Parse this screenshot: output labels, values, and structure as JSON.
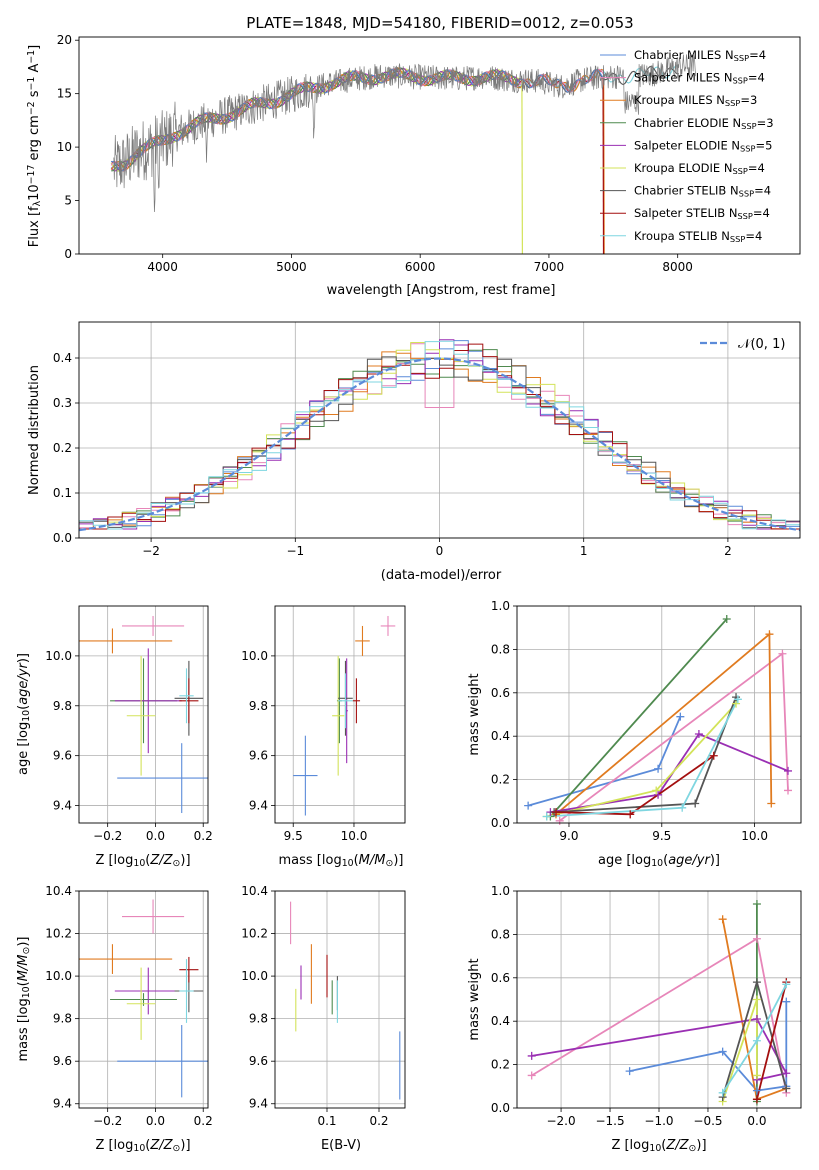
{
  "figure_title": "PLATE=1848, MJD=54180, FIBERID=0012, z=0.053",
  "colors": {
    "Chabrier MILES": "#5b8bd9",
    "Salpeter MILES": "#e786b9",
    "Kroupa MILES": "#e07b20",
    "Chabrier ELODIE": "#4f8a4f",
    "Salpeter ELODIE": "#9a2fb3",
    "Kroupa ELODIE": "#d3e35a",
    "Chabrier STELIB": "#555555",
    "Salpeter STELIB": "#a30f0f",
    "Kroupa STELIB": "#7fd6e0",
    "data": "#7a7a7a",
    "normal": "#5b8bd9"
  },
  "chart_data": [
    {
      "id": "spectrum",
      "type": "line",
      "title": "PLATE=1848, MJD=54180, FIBERID=0012, z=0.053",
      "xlabel": "wavelength [Angstrom, rest frame]",
      "ylabel": "Flux [f_λ10^-17 erg cm^-2 s^-1 A^-1]",
      "xlim": [
        3350,
        8950
      ],
      "ylim": [
        0,
        20.3
      ],
      "xticks": [
        4000,
        5000,
        6000,
        7000,
        8000
      ],
      "yticks": [
        0,
        5,
        10,
        15,
        20
      ],
      "legend": "top-right",
      "legend_entries": [
        {
          "name": "Chabrier MILES",
          "nssp": "4"
        },
        {
          "name": "Salpeter MILES",
          "nssp": "4"
        },
        {
          "name": "Kroupa MILES",
          "nssp": "3"
        },
        {
          "name": "Chabrier ELODIE",
          "nssp": "3"
        },
        {
          "name": "Salpeter ELODIE",
          "nssp": "5"
        },
        {
          "name": "Kroupa ELODIE",
          "nssp": "4"
        },
        {
          "name": "Chabrier STELIB",
          "nssp": "4"
        },
        {
          "name": "Salpeter STELIB",
          "nssp": "4"
        },
        {
          "name": "Kroupa STELIB",
          "nssp": "4"
        }
      ],
      "continuum": [
        [
          3600,
          8.0
        ],
        [
          3700,
          8.5
        ],
        [
          3800,
          9.5
        ],
        [
          3900,
          10.0
        ],
        [
          4000,
          10.5
        ],
        [
          4100,
          11.3
        ],
        [
          4300,
          12.3
        ],
        [
          4500,
          13.0
        ],
        [
          4700,
          13.8
        ],
        [
          4900,
          14.5
        ],
        [
          5100,
          15.3
        ],
        [
          5300,
          16.0
        ],
        [
          5500,
          16.4
        ],
        [
          5700,
          16.7
        ],
        [
          5900,
          16.6
        ],
        [
          6100,
          16.5
        ],
        [
          6300,
          16.4
        ],
        [
          6500,
          16.6
        ],
        [
          6700,
          16.3
        ],
        [
          6900,
          16.2
        ],
        [
          7100,
          15.7
        ],
        [
          7300,
          16.4
        ],
        [
          7500,
          16.6
        ],
        [
          7800,
          16.8
        ],
        [
          8000,
          17.5
        ],
        [
          8100,
          17.6
        ]
      ],
      "fit_ranges": {
        "Chabrier MILES": [
          3600,
          7430
        ],
        "Salpeter MILES": [
          3600,
          7430
        ],
        "Kroupa MILES": [
          3600,
          7430
        ],
        "Chabrier ELODIE": [
          3600,
          6790
        ],
        "Salpeter ELODIE": [
          3600,
          6790
        ],
        "Kroupa ELODIE": [
          3600,
          6790
        ],
        "Chabrier STELIB": [
          3600,
          8010
        ],
        "Salpeter STELIB": [
          3600,
          7420
        ],
        "Kroupa STELIB": [
          3600,
          8010
        ]
      },
      "drops": [
        {
          "model": "Kroupa ELODIE",
          "x": 6790
        },
        {
          "model": "Kroupa MILES",
          "x": 7425
        },
        {
          "model": "Salpeter STELIB",
          "x": 7420
        }
      ]
    },
    {
      "id": "residuals",
      "type": "line",
      "xlabel": "(data-model)/error",
      "ylabel": "Normed distribution",
      "xlim": [
        -2.5,
        2.5
      ],
      "ylim": [
        0,
        0.48
      ],
      "xticks": [
        -2,
        -1,
        0,
        1,
        2
      ],
      "yticks": [
        0.0,
        0.1,
        0.2,
        0.3,
        0.4
      ],
      "grid": true,
      "legend": "top-right",
      "reference": "N(0,1)",
      "bin_width": 0.1
    },
    {
      "id": "age-vs-Z",
      "type": "scatter",
      "xlabel": "Z [log10(Z/Z☉)]",
      "ylabel": "age [log10(age/yr)]",
      "xlim": [
        -0.32,
        0.22
      ],
      "ylim": [
        9.33,
        10.2
      ],
      "xticks": [
        -0.2,
        0.0,
        0.2
      ],
      "yticks": [
        9.4,
        9.6,
        9.8,
        10.0
      ],
      "grid": true,
      "points": [
        {
          "model": "Chabrier MILES",
          "x": 0.11,
          "xerr": 0.27,
          "y": 9.51,
          "yerr": 0.14
        },
        {
          "model": "Salpeter MILES",
          "x": -0.01,
          "xerr": 0.13,
          "y": 10.12,
          "yerr": 0.04
        },
        {
          "model": "Kroupa MILES",
          "x": -0.18,
          "xerr": 0.25,
          "y": 10.06,
          "yerr": 0.05
        },
        {
          "model": "Chabrier ELODIE",
          "x": -0.05,
          "xerr": 0.14,
          "y": 9.82,
          "yerr": 0.17
        },
        {
          "model": "Salpeter ELODIE",
          "x": -0.03,
          "xerr": 0.14,
          "y": 9.82,
          "yerr": 0.21
        },
        {
          "model": "Kroupa ELODIE",
          "x": -0.06,
          "xerr": 0.06,
          "y": 9.76,
          "yerr": 0.24
        },
        {
          "model": "Chabrier STELIB",
          "x": 0.14,
          "xerr": 0.06,
          "y": 9.83,
          "yerr": 0.15
        },
        {
          "model": "Salpeter STELIB",
          "x": 0.14,
          "xerr": 0.04,
          "y": 9.82,
          "yerr": 0.09
        },
        {
          "model": "Kroupa STELIB",
          "x": 0.13,
          "xerr": 0.03,
          "y": 9.84,
          "yerr": 0.11
        }
      ]
    },
    {
      "id": "age-vs-mass",
      "type": "scatter",
      "xlabel": "mass [log10(M/M☉)]",
      "ylabel": "",
      "xlim": [
        9.35,
        10.42
      ],
      "ylim": [
        9.33,
        10.2
      ],
      "xticks": [
        9.5,
        10.0
      ],
      "yticks": [
        9.4,
        9.6,
        9.8,
        10.0
      ],
      "grid": true,
      "points": [
        {
          "model": "Chabrier MILES",
          "x": 9.6,
          "xerr": 0.1,
          "y": 9.52,
          "yerr": 0.16
        },
        {
          "model": "Salpeter MILES",
          "x": 10.28,
          "xerr": 0.06,
          "y": 10.12,
          "yerr": 0.04
        },
        {
          "model": "Kroupa MILES",
          "x": 10.07,
          "xerr": 0.06,
          "y": 10.06,
          "yerr": 0.06
        },
        {
          "model": "Chabrier ELODIE",
          "x": 9.88,
          "xerr": 0.02,
          "y": 9.82,
          "yerr": 0.17
        },
        {
          "model": "Salpeter ELODIE",
          "x": 9.94,
          "xerr": 0.01,
          "y": 9.78,
          "yerr": 0.21
        },
        {
          "model": "Kroupa ELODIE",
          "x": 9.87,
          "xerr": 0.05,
          "y": 9.76,
          "yerr": 0.24
        },
        {
          "model": "Chabrier STELIB",
          "x": 9.93,
          "xerr": 0.06,
          "y": 9.83,
          "yerr": 0.15
        },
        {
          "model": "Salpeter STELIB",
          "x": 10.02,
          "xerr": 0.03,
          "y": 9.82,
          "yerr": 0.09
        },
        {
          "model": "Kroupa STELIB",
          "x": 9.93,
          "xerr": 0.06,
          "y": 9.82,
          "yerr": 0.11
        }
      ]
    },
    {
      "id": "weight-vs-age",
      "type": "line",
      "xlabel": "age [log10(age/yr)]",
      "ylabel": "mass weight",
      "xlim": [
        8.72,
        10.25
      ],
      "ylim": [
        0,
        1.0
      ],
      "xticks": [
        9.0,
        9.5,
        10.0
      ],
      "yticks": [
        0.0,
        0.2,
        0.4,
        0.6,
        0.8,
        1.0
      ],
      "grid": true,
      "series": [
        {
          "name": "Chabrier MILES",
          "x": [
            8.78,
            9.48,
            9.6
          ],
          "y": [
            0.08,
            0.25,
            0.49
          ]
        },
        {
          "name": "Salpeter MILES",
          "x": [
            8.95,
            10.15,
            10.18
          ],
          "y": [
            0.01,
            0.78,
            0.15
          ]
        },
        {
          "name": "Kroupa MILES",
          "x": [
            8.93,
            10.08,
            10.09
          ],
          "y": [
            0.04,
            0.87,
            0.09
          ]
        },
        {
          "name": "Chabrier ELODIE",
          "x": [
            8.9,
            9.85
          ],
          "y": [
            0.03,
            0.94
          ]
        },
        {
          "name": "Salpeter ELODIE",
          "x": [
            8.9,
            9.48,
            9.7,
            10.18
          ],
          "y": [
            0.05,
            0.13,
            0.41,
            0.24
          ]
        },
        {
          "name": "Kroupa ELODIE",
          "x": [
            8.88,
            9.47,
            9.9
          ],
          "y": [
            0.03,
            0.15,
            0.55
          ]
        },
        {
          "name": "Chabrier STELIB",
          "x": [
            8.92,
            9.68,
            9.9
          ],
          "y": [
            0.05,
            0.09,
            0.58
          ]
        },
        {
          "name": "Salpeter STELIB",
          "x": [
            8.93,
            9.33,
            9.78
          ],
          "y": [
            0.05,
            0.04,
            0.31
          ]
        },
        {
          "name": "Kroupa STELIB",
          "x": [
            8.88,
            9.61,
            9.91
          ],
          "y": [
            0.03,
            0.07,
            0.57
          ]
        }
      ]
    },
    {
      "id": "mass-vs-Z",
      "type": "scatter",
      "xlabel": "Z [log10(Z/Z☉)]",
      "ylabel": "mass [log10(M/M☉)]",
      "xlim": [
        -0.32,
        0.22
      ],
      "ylim": [
        9.38,
        10.4
      ],
      "xticks": [
        -0.2,
        0.0,
        0.2
      ],
      "yticks": [
        9.4,
        9.6,
        9.8,
        10.0,
        10.2,
        10.4
      ],
      "grid": true,
      "points": [
        {
          "model": "Chabrier MILES",
          "x": 0.11,
          "xerr": 0.27,
          "y": 9.6,
          "yerr": 0.17
        },
        {
          "model": "Salpeter MILES",
          "x": -0.01,
          "xerr": 0.13,
          "y": 10.28,
          "yerr": 0.08
        },
        {
          "model": "Kroupa MILES",
          "x": -0.18,
          "xerr": 0.25,
          "y": 10.08,
          "yerr": 0.07
        },
        {
          "model": "Chabrier ELODIE",
          "x": -0.05,
          "xerr": 0.14,
          "y": 9.89,
          "yerr": 0.03
        },
        {
          "model": "Salpeter ELODIE",
          "x": -0.03,
          "xerr": 0.14,
          "y": 9.93,
          "yerr": 0.11
        },
        {
          "model": "Kroupa ELODIE",
          "x": -0.06,
          "xerr": 0.06,
          "y": 9.87,
          "yerr": 0.17
        },
        {
          "model": "Chabrier STELIB",
          "x": 0.14,
          "xerr": 0.06,
          "y": 9.93,
          "yerr": 0.1
        },
        {
          "model": "Salpeter STELIB",
          "x": 0.14,
          "xerr": 0.04,
          "y": 10.03,
          "yerr": 0.06
        },
        {
          "model": "Kroupa STELIB",
          "x": 0.13,
          "xerr": 0.03,
          "y": 9.93,
          "yerr": 0.15
        }
      ]
    },
    {
      "id": "mass-vs-ebv",
      "type": "scatter",
      "xlabel": "E(B-V)",
      "ylabel": "",
      "xlim": [
        0.0,
        0.25
      ],
      "ylim": [
        9.38,
        10.4
      ],
      "xticks": [
        0.1,
        0.2
      ],
      "yticks": [
        9.4,
        9.6,
        9.8,
        10.0,
        10.2,
        10.4
      ],
      "grid": true,
      "points": [
        {
          "model": "Chabrier MILES",
          "x": 0.24,
          "y": 9.58,
          "yerr": 0.16
        },
        {
          "model": "Salpeter MILES",
          "x": 0.03,
          "y": 10.25,
          "yerr": 0.1
        },
        {
          "model": "Kroupa MILES",
          "x": 0.07,
          "y": 10.01,
          "yerr": 0.14
        },
        {
          "model": "Chabrier ELODIE",
          "x": 0.11,
          "y": 9.9,
          "yerr": 0.08
        },
        {
          "model": "Salpeter ELODIE",
          "x": 0.05,
          "y": 9.97,
          "yerr": 0.08
        },
        {
          "model": "Kroupa ELODIE",
          "x": 0.04,
          "y": 9.84,
          "yerr": 0.1
        },
        {
          "model": "Chabrier STELIB",
          "x": 0.12,
          "y": 9.92,
          "yerr": 0.08
        },
        {
          "model": "Salpeter STELIB",
          "x": 0.1,
          "y": 10.0,
          "yerr": 0.1
        },
        {
          "model": "Kroupa STELIB",
          "x": 0.12,
          "y": 9.88,
          "yerr": 0.1
        }
      ]
    },
    {
      "id": "weight-vs-Z",
      "type": "line",
      "xlabel": "Z [log10(Z/Z☉)]",
      "ylabel": "mass weight",
      "xlim": [
        -2.45,
        0.45
      ],
      "ylim": [
        0,
        1.0
      ],
      "xticks": [
        -2.0,
        -1.5,
        -1.0,
        -0.5,
        0.0
      ],
      "yticks": [
        0.0,
        0.2,
        0.4,
        0.6,
        0.8,
        1.0
      ],
      "grid": true,
      "series": [
        {
          "name": "Chabrier MILES",
          "x": [
            -1.3,
            -0.35,
            0.0,
            0.3,
            0.3
          ],
          "y": [
            0.17,
            0.26,
            0.08,
            0.1,
            0.49
          ]
        },
        {
          "name": "Salpeter MILES",
          "x": [
            -2.3,
            0.0,
            0.3
          ],
          "y": [
            0.15,
            0.78,
            0.07
          ]
        },
        {
          "name": "Kroupa MILES",
          "x": [
            -0.35,
            0.0,
            0.3
          ],
          "y": [
            0.87,
            0.04,
            0.09
          ]
        },
        {
          "name": "Chabrier ELODIE",
          "x": [
            0.0,
            0.0
          ],
          "y": [
            0.03,
            0.94
          ]
        },
        {
          "name": "Salpeter ELODIE",
          "x": [
            -2.3,
            0.0,
            0.3,
            0.0
          ],
          "y": [
            0.24,
            0.41,
            0.16,
            0.13
          ]
        },
        {
          "name": "Kroupa ELODIE",
          "x": [
            -0.35,
            0.0,
            0.0
          ],
          "y": [
            0.03,
            0.5,
            0.15
          ]
        },
        {
          "name": "Chabrier STELIB",
          "x": [
            -0.35,
            0.0,
            0.3
          ],
          "y": [
            0.05,
            0.58,
            0.09
          ]
        },
        {
          "name": "Salpeter STELIB",
          "x": [
            0.0,
            0.3
          ],
          "y": [
            0.04,
            0.58
          ]
        },
        {
          "name": "Kroupa STELIB",
          "x": [
            -0.35,
            0.0,
            0.3
          ],
          "y": [
            0.07,
            0.31,
            0.57
          ]
        }
      ]
    }
  ]
}
